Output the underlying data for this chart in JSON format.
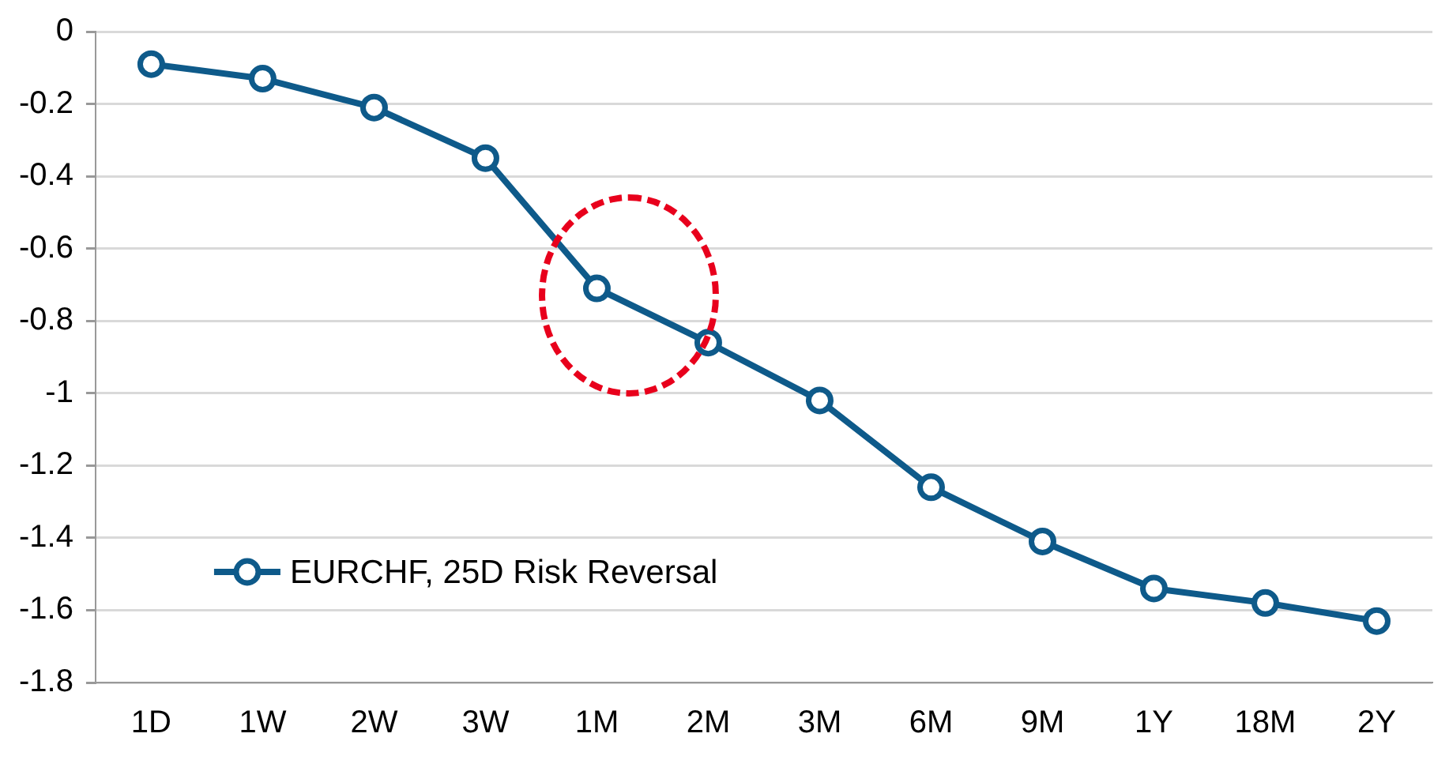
{
  "chart_data": {
    "type": "line",
    "categories": [
      "1D",
      "1W",
      "2W",
      "3W",
      "1M",
      "2M",
      "3M",
      "6M",
      "9M",
      "1Y",
      "18M",
      "2Y"
    ],
    "series": [
      {
        "name": "EURCHF, 25D Risk Reversal",
        "color": "#0e5a8a",
        "values": [
          -0.09,
          -0.13,
          -0.21,
          -0.35,
          -0.71,
          -0.86,
          -1.02,
          -1.26,
          -1.41,
          -1.54,
          -1.58,
          -1.63
        ]
      }
    ],
    "ylim": [
      -1.8,
      0
    ],
    "yticks": [
      0,
      -0.2,
      -0.4,
      -0.6,
      -0.8,
      -1,
      -1.2,
      -1.4,
      -1.6,
      -1.8
    ],
    "grid": "y",
    "legend": "bottom left",
    "marker": "circle",
    "line_style": "solid"
  }
}
